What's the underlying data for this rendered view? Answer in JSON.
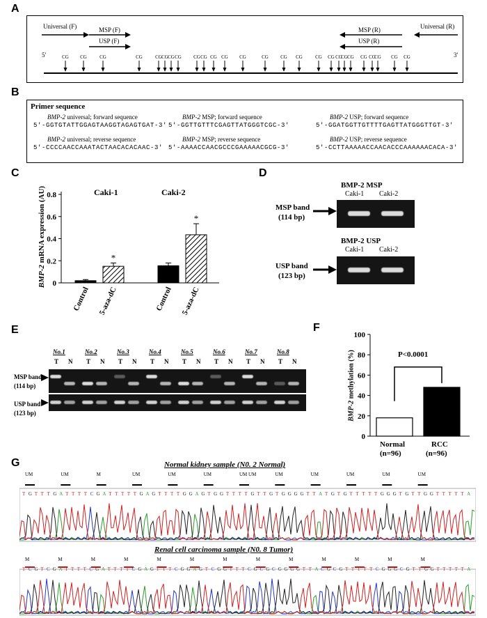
{
  "panel_a": {
    "label": "A",
    "universal_f": "Universal (F)",
    "msp_f": "MSP (F)",
    "usp_f": "USP (F)",
    "msp_r": "MSP (R)",
    "usp_r": "USP (R)",
    "universal_r": "Universal (R)",
    "five_prime": "5'",
    "three_prime": "3'",
    "cg": "CG"
  },
  "panel_b": {
    "label": "B",
    "heading": "Primer sequence",
    "primers": [
      {
        "gene": "BMP-2",
        "desc": " universal; forward sequence",
        "seq": "5'-GGTGTATTGGAGTAAGGTAGAGTGAT-3'"
      },
      {
        "gene": "BMP-2",
        "desc": " MSP; forward sequence",
        "seq": "5'-GGTTGTTTCGAGTTATGGGTCGC-3'"
      },
      {
        "gene": "BMP-2",
        "desc": " USP; forward sequence",
        "seq": "5'-GGATGGTTGTTTTGAGTTATGGGTTGT-3'"
      },
      {
        "gene": "BMP-2",
        "desc": " universal; reverse sequence",
        "seq": "5'-CCCCAACCAAATACTAACACACAAC-3'"
      },
      {
        "gene": "BMP-2",
        "desc": " MSP; reverse sequence",
        "seq": "5'-AAAACCAACGCCCGAAAAACGCG-3'"
      },
      {
        "gene": "BMP-2",
        "desc": " USP; reverse sequence",
        "seq": "5'-CCTTAAAAACCAACACCCAAAAAACACA-3'"
      }
    ]
  },
  "panel_c": {
    "label": "C",
    "ylabel_gene": "BMP-2",
    "ylabel_rest": " mRNA expression (AU)",
    "group1": "Caki-1",
    "group2": "Caki-2",
    "star": "*"
  },
  "panel_d": {
    "label": "D",
    "msp_title": "BMP-2 MSP",
    "usp_title": "BMP-2 USP",
    "lane1": "Caki-1",
    "lane2": "Caki-2",
    "msp_band": "MSP band",
    "msp_size": "(114 bp)",
    "usp_band": "USP band",
    "usp_size": "(123 bp)"
  },
  "panel_e": {
    "label": "E",
    "samples": [
      "No.1",
      "No.2",
      "No.3",
      "No.4",
      "No.5",
      "No.6",
      "No.7",
      "No.8"
    ],
    "t": "T",
    "n": "N",
    "msp_band": "MSP band",
    "msp_size": "(114 bp)",
    "usp_band": "USP band",
    "usp_size": "(123 bp)"
  },
  "panel_f": {
    "label": "F",
    "ylabel_gene": "BMP-2",
    "ylabel_rest": " methylation (%)",
    "pvalue": "P<0.0001",
    "cat1": "Normal",
    "cat1_n": "(n=96)",
    "cat2": "RCC",
    "cat2_n": "(n=96)"
  },
  "panel_g": {
    "label": "G",
    "normal_title": "Normal kidney sample (N0. 2 Normal)",
    "tumor_title": "Renal cell carcinoma sample (N0. 8 Tumor)",
    "normal_marks": [
      "UM",
      "UM",
      "M",
      "UM",
      "UM",
      "UM",
      "UM UM",
      "UM",
      "UM",
      "UM",
      "UM",
      "UM"
    ],
    "tumor_marks": [
      "M",
      "M",
      "M",
      "M",
      "M",
      "M",
      "M",
      "M",
      "M",
      "M",
      "M",
      "M",
      "M"
    ],
    "normal_seq": "TGTTTGATTTTCGATTTTTGAGTTTTGGAGTGGTTTTGTTGTGGGGTTATGTGTTTTTGGGTGTTGGTTTTTA",
    "tumor_seq": "TCGTCGATTTTCGATTTTCGAGTTTCGGAGTCGGTTTCGCGCGGGGTTACGCGTTTTTCGGGCGTTGGTTTTTA"
  },
  "chart_data": [
    {
      "type": "bar",
      "categories": [
        "Control",
        "5-aza-dC",
        "Control",
        "5-aza-dC"
      ],
      "groups": [
        "Caki-1",
        "Caki-1",
        "Caki-2",
        "Caki-2"
      ],
      "values": [
        0.02,
        0.15,
        0.155,
        0.435
      ],
      "errors": [
        0.01,
        0.03,
        0.025,
        0.1
      ],
      "ylabel": "BMP-2 mRNA expression (AU)",
      "ylim": [
        0,
        0.8
      ],
      "yticks": [
        0,
        0.2,
        0.4,
        0.6,
        0.8
      ]
    },
    {
      "type": "bar",
      "categories": [
        "Normal",
        "RCC"
      ],
      "values": [
        18,
        48
      ],
      "ylabel": "BMP-2 methylation (%)",
      "ylim": [
        0,
        100
      ],
      "yticks": [
        0,
        20,
        40,
        60,
        80,
        100
      ]
    }
  ]
}
